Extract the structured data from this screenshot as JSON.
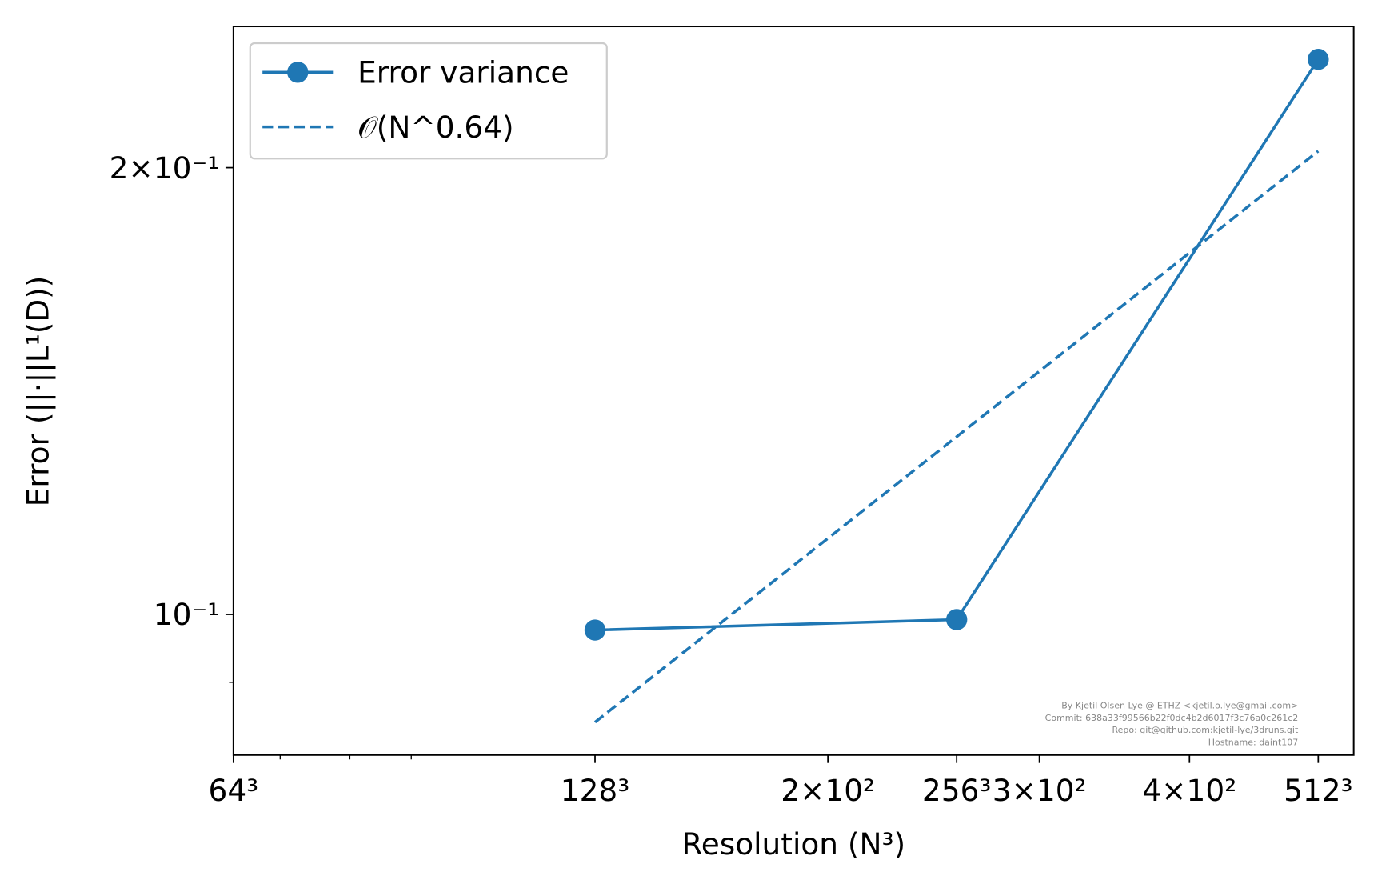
{
  "chart_data": {
    "type": "line",
    "xlabel": "Resolution (N³)",
    "ylabel": "Error (||·||L¹(D))",
    "xscale": "log",
    "yscale": "log",
    "xlim": [
      64,
      548
    ],
    "ylim": [
      0.0804,
      0.249
    ],
    "xticks": [
      {
        "value": 64,
        "label": "64³"
      },
      {
        "value": 128,
        "label": "128³"
      },
      {
        "value": 200,
        "label": "2×10²"
      },
      {
        "value": 256,
        "label": "256³"
      },
      {
        "value": 300,
        "label": "3×10²"
      },
      {
        "value": 400,
        "label": "4×10²"
      },
      {
        "value": 512,
        "label": "512³"
      }
    ],
    "xminorticks": [
      70,
      80,
      90
    ],
    "yticks": [
      {
        "value": 0.1,
        "label": "10⁻¹"
      },
      {
        "value": 0.2,
        "label": "2×10⁻¹"
      }
    ],
    "yminorticks": [
      0.09
    ],
    "legend": "upper left",
    "series": [
      {
        "name": "Error variance",
        "color": "#1f77b4",
        "linestyle": "solid",
        "marker": "o",
        "x": [
          128,
          256,
          512
        ],
        "values": [
          0.0976,
          0.0992,
          0.2366
        ]
      },
      {
        "name": "𝒪(N^0.64)",
        "color": "#1f77b4",
        "linestyle": "dashed",
        "marker": "none",
        "x": [
          128,
          512
        ],
        "values": [
          0.0846,
          0.2052
        ]
      }
    ],
    "annotations": [
      "By Kjetil Olsen Lye @ ETHZ <kjetil.o.lye@gmail.com>",
      "Commit: 638a33f99566b22f0dc4b2d6017f3c76a0c261c2",
      "Repo: git@github.com:kjetil-lye/3druns.git",
      "Hostname: daint107"
    ]
  }
}
